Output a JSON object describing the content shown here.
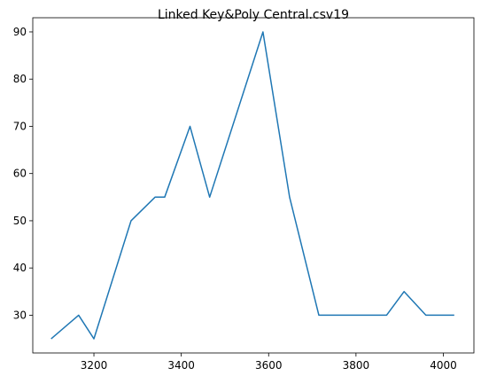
{
  "chart_data": {
    "type": "line",
    "title": "Linked Key&Poly Central.csv19",
    "xlabel": "",
    "ylabel": "",
    "xlim": [
      3060,
      4070
    ],
    "ylim": [
      22.0,
      93.0
    ],
    "x_ticks": [
      3200,
      3400,
      3600,
      3800,
      4000
    ],
    "y_ticks": [
      30,
      40,
      50,
      60,
      70,
      80,
      90
    ],
    "grid": false,
    "series": [
      {
        "color": "#1f77b4",
        "x": [
          3102,
          3165,
          3200,
          3285,
          3340,
          3362,
          3420,
          3465,
          3587,
          3648,
          3715,
          3870,
          3910,
          3960,
          4025
        ],
        "y": [
          25,
          30,
          25,
          50,
          55,
          55,
          70,
          55,
          90,
          55,
          30,
          30,
          35,
          30,
          30
        ]
      }
    ]
  }
}
